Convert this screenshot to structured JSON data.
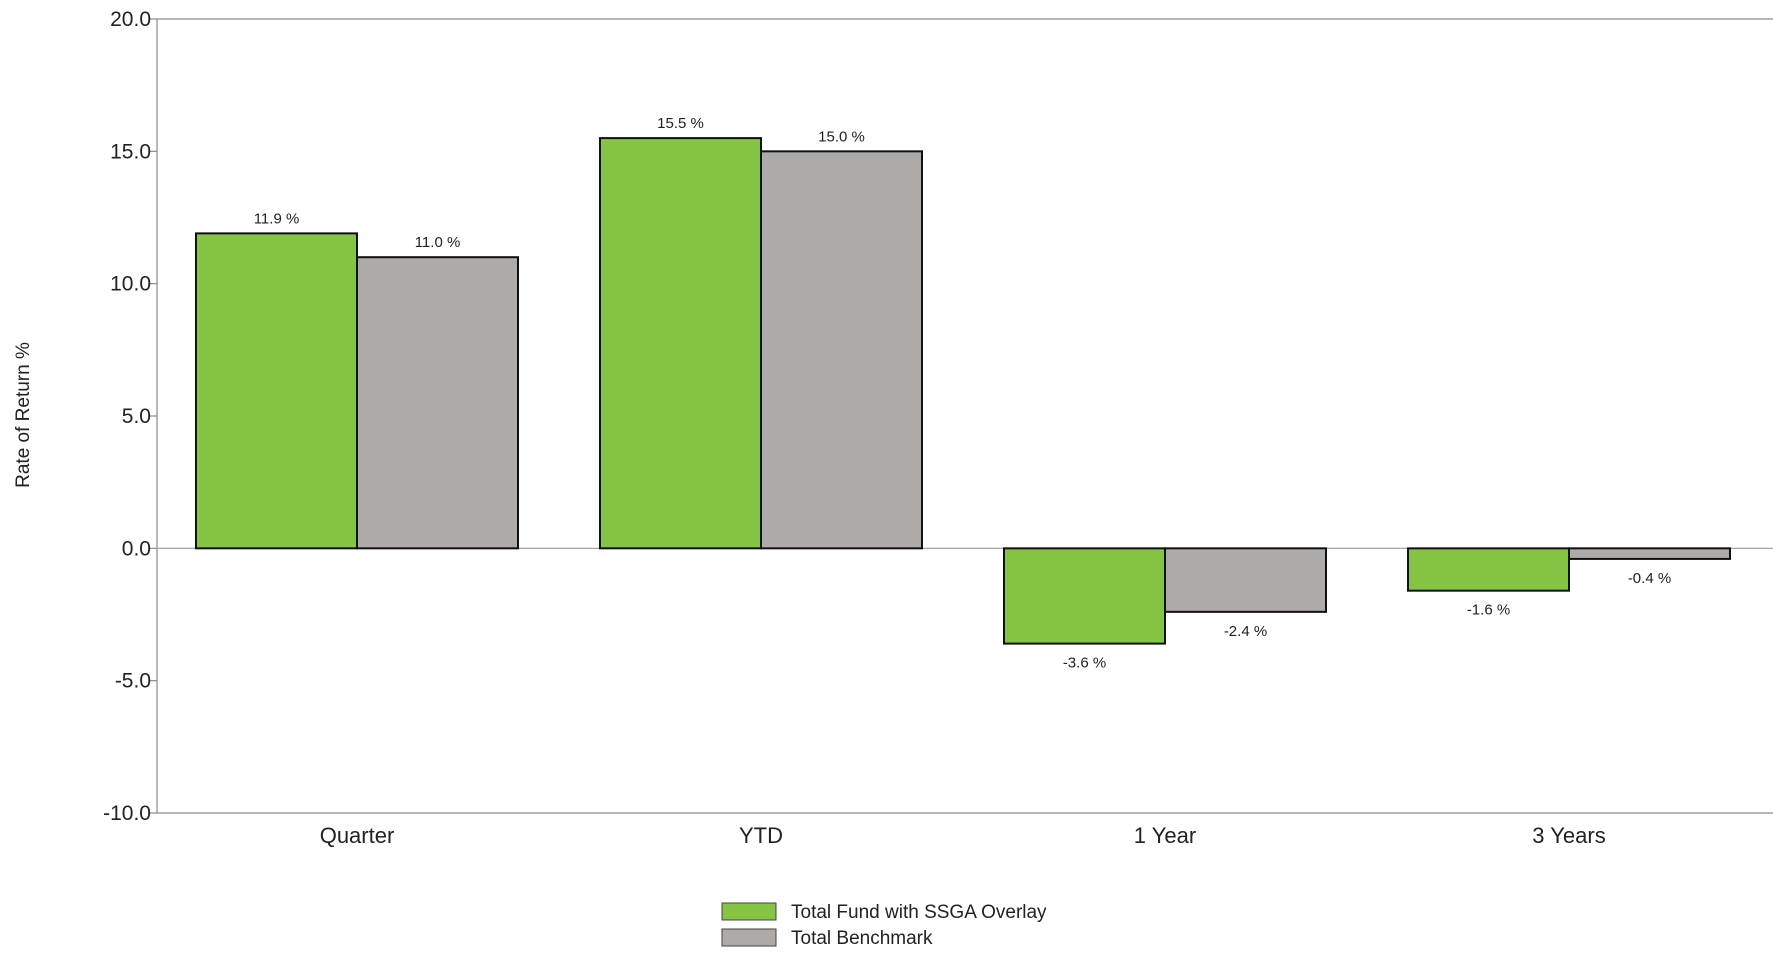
{
  "chart_data": {
    "type": "bar",
    "title": "",
    "xlabel": "",
    "ylabel": "Rate of Return %",
    "ylim": [
      -10,
      20
    ],
    "yticks": [
      20,
      15,
      10,
      5,
      0,
      -5,
      -10
    ],
    "ytick_labels": [
      "20.0",
      "15.0",
      "10.0",
      "5.0",
      "0.0",
      "-5.0",
      "-10.0"
    ],
    "grid": false,
    "legend_position": "bottom-center",
    "categories": [
      "Quarter",
      "YTD",
      "1 Year",
      "3 Years"
    ],
    "series": [
      {
        "name": "Total Fund with SSGA Overlay",
        "color": "#86c443",
        "values": [
          11.9,
          15.5,
          -3.6,
          -1.6
        ],
        "labels": [
          "11.9 %",
          "15.5 %",
          "-3.6 %",
          "-1.6 %"
        ]
      },
      {
        "name": "Total Benchmark",
        "color": "#aeaaa7",
        "values": [
          11.0,
          15.0,
          -2.4,
          -0.4
        ],
        "labels": [
          "11.0 %",
          "15.0 %",
          "-2.4 %",
          "-0.4 %"
        ]
      }
    ]
  }
}
